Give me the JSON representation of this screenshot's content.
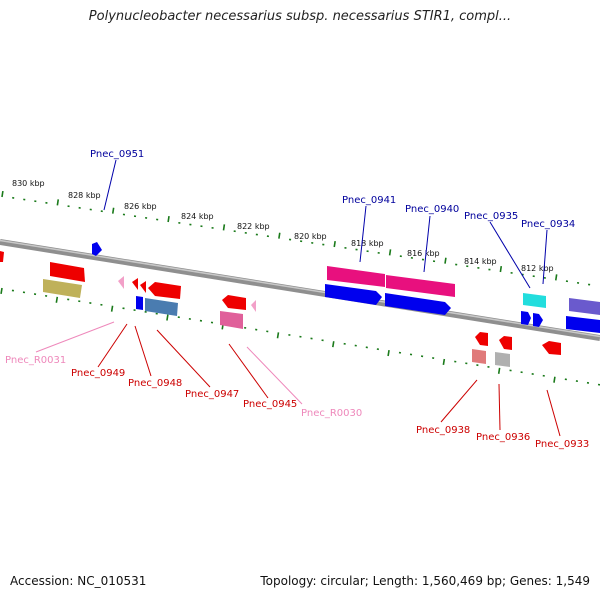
{
  "title": "Polynucleobacter necessarius subsp. necessarius STIR1, compl...",
  "footer": {
    "accession": "Accession: NC_010531",
    "summary": "Topology: circular; Length: 1,560,469 bp; Genes: 1,549"
  },
  "colors": {
    "backbone": "#8a8a8a",
    "ticks": "#1a7a1a",
    "plus_label": "#00009c",
    "minus_label": "#cc0000",
    "rna_label": "#ee88bb"
  },
  "scale": {
    "labels": [
      "830 kbp",
      "828 kbp",
      "826 kbp",
      "824 kbp",
      "822 kbp",
      "820 kbp",
      "818 kbp",
      "816 kbp",
      "814 kbp",
      "812 kbp"
    ]
  },
  "genes_plus": [
    "Pnec_0951",
    "Pnec_0941",
    "Pnec_0940",
    "Pnec_0935",
    "Pnec_0934"
  ],
  "genes_minus": [
    "Pnec_R0031",
    "Pnec_0949",
    "Pnec_0948",
    "Pnec_0947",
    "Pnec_0945",
    "Pnec_R0030",
    "Pnec_0938",
    "Pnec_0936",
    "Pnec_0933"
  ]
}
